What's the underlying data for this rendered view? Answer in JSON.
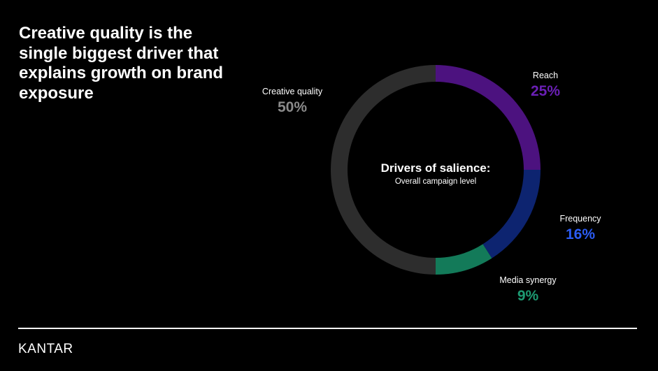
{
  "headline": "Creative quality is the single biggest driver that explains growth on brand exposure",
  "logo": "KANTAR",
  "chart_data": {
    "type": "pie",
    "title": "Drivers of salience:",
    "subtitle": "Overall campaign level",
    "slices": [
      {
        "label": "Reach",
        "value": 25,
        "value_label": "25%",
        "color": "#4c127f"
      },
      {
        "label": "Frequency",
        "value": 16,
        "value_label": "16%",
        "color": "#0d2470"
      },
      {
        "label": "Media synergy",
        "value": 9,
        "value_label": "9%",
        "color": "#137a59"
      },
      {
        "label": "Creative quality",
        "value": 50,
        "value_label": "50%",
        "color": "#2d2d2d"
      }
    ],
    "label_colors": {
      "Reach": "#6a1fb5",
      "Frequency": "#2b5cf5",
      "Media synergy": "#1d9a72",
      "Creative quality": "#8a8a8a"
    }
  }
}
